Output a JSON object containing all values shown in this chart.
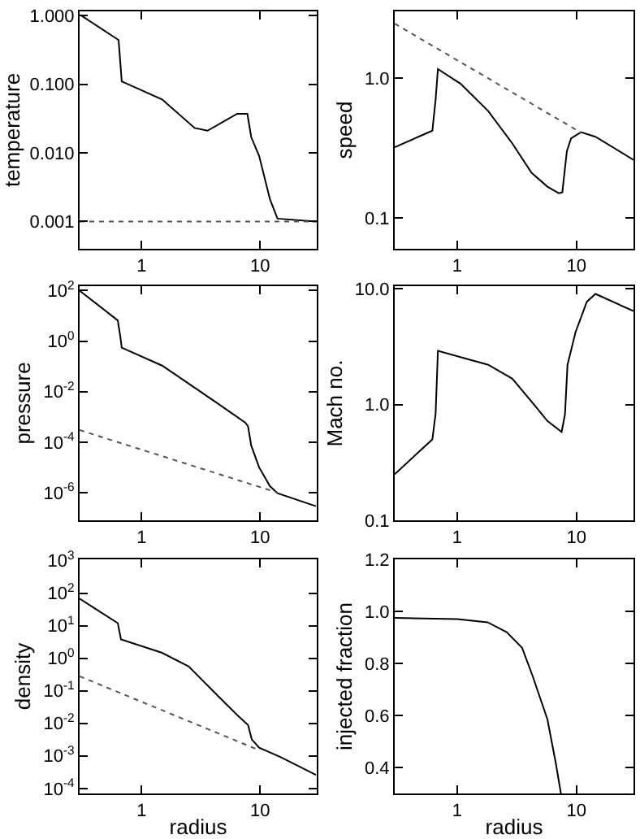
{
  "chart_data": [
    {
      "type": "line",
      "ylabel": "temperature",
      "log": "xy",
      "marker": "none",
      "xlim": [
        0.3,
        30
      ],
      "xticks": [
        1,
        10
      ],
      "ylim": [
        0.0004,
        1.15
      ],
      "yticks": [
        {
          "value": 0.001,
          "label": "0.001"
        },
        {
          "value": 0.01,
          "label": "0.010"
        },
        {
          "value": 0.1,
          "label": "0.100"
        },
        {
          "value": 1,
          "label": "1.000"
        }
      ],
      "series": [
        {
          "color": "#000000",
          "line_style": "solid",
          "x": [
            0.31,
            0.64,
            0.68,
            1.49,
            2.8,
            3.6,
            5,
            6.4,
            7.8,
            8.4,
            9.8,
            12.1,
            14,
            29.5
          ],
          "values": [
            1.0,
            0.44,
            0.11,
            0.06,
            0.023,
            0.021,
            0.029,
            0.037,
            0.037,
            0.017,
            0.009,
            0.0021,
            0.0011,
            0.001
          ]
        },
        {
          "color": "#555555",
          "line_style": "dotted",
          "x": [
            0.3,
            30
          ],
          "values": [
            0.001,
            0.001
          ]
        }
      ]
    },
    {
      "type": "line",
      "ylabel": "speed",
      "log": "xy",
      "marker": "none",
      "xlim": [
        0.3,
        30
      ],
      "xticks": [
        1,
        10
      ],
      "ylim": [
        0.06,
        3
      ],
      "yticks": [
        {
          "value": 0.1,
          "label": "0.1"
        },
        {
          "value": 1,
          "label": "1.0"
        }
      ],
      "series": [
        {
          "color": "#000000",
          "line_style": "solid",
          "x": [
            0.3,
            0.62,
            0.66,
            0.69,
            1.07,
            1.82,
            2.9,
            4.2,
            5.7,
            7.1,
            7.6,
            8.3,
            9.0,
            10.9,
            14.4,
            30
          ],
          "values": [
            0.32,
            0.42,
            0.7,
            1.16,
            0.91,
            0.58,
            0.34,
            0.21,
            0.167,
            0.15,
            0.152,
            0.3,
            0.37,
            0.41,
            0.38,
            0.26
          ]
        },
        {
          "color": "#555555",
          "line_style": "dotted",
          "x": [
            0.3,
            11
          ],
          "values": [
            2.45,
            0.405
          ]
        }
      ]
    },
    {
      "type": "line",
      "ylabel": "pressure",
      "log": "xy",
      "marker": "none",
      "xlim": [
        0.3,
        30
      ],
      "xticks": [
        1,
        10
      ],
      "ylim": [
        8e-08,
        150
      ],
      "yticks": [
        {
          "value": 1e-06,
          "label": "10$^{-6}$"
        },
        {
          "value": 0.0001,
          "label": "10$^{-4}$"
        },
        {
          "value": 0.01,
          "label": "10$^{-2}$"
        },
        {
          "value": 1,
          "label": "10$^{0}$"
        },
        {
          "value": 100,
          "label": "10$^{2}$"
        }
      ],
      "series": [
        {
          "color": "#000000",
          "line_style": "solid",
          "x": [
            0.3,
            0.63,
            0.66,
            0.68,
            1.49,
            4.2,
            7.5,
            7.9,
            8.4,
            9.8,
            12.1,
            14,
            29.5
          ],
          "values": [
            100,
            6.6,
            1.6,
            0.55,
            0.107,
            0.0039,
            0.00059,
            0.00042,
            7.4e-05,
            1e-05,
            1.8e-06,
            9.5e-07,
            2.9e-07
          ]
        },
        {
          "color": "#555555",
          "line_style": "dotted",
          "x": [
            0.3,
            14
          ],
          "values": [
            0.0003,
            1e-06
          ]
        }
      ]
    },
    {
      "type": "line",
      "ylabel": "Mach no.",
      "log": "xy",
      "marker": "none",
      "xlim": [
        0.3,
        30
      ],
      "xticks": [
        1,
        10
      ],
      "ylim": [
        0.1,
        10.5
      ],
      "yticks": [
        {
          "value": 0.1,
          "label": "0.1"
        },
        {
          "value": 1,
          "label": "1.0"
        },
        {
          "value": 10,
          "label": "10.0"
        }
      ],
      "series": [
        {
          "color": "#000000",
          "line_style": "solid",
          "x": [
            0.3,
            0.62,
            0.66,
            0.69,
            1.82,
            2.9,
            4.7,
            5.7,
            7.5,
            8.0,
            8.4,
            9.8,
            12.2,
            14.4,
            30
          ],
          "values": [
            0.25,
            0.5,
            0.83,
            2.9,
            2.2,
            1.67,
            0.92,
            0.72,
            0.58,
            0.82,
            2.2,
            4.2,
            7.7,
            9.0,
            6.4
          ]
        }
      ]
    },
    {
      "type": "line",
      "xlabel": "radius",
      "ylabel": "density",
      "log": "xy",
      "marker": "none",
      "xlim": [
        0.3,
        30
      ],
      "xticks": [
        1,
        10
      ],
      "ylim": [
        7e-05,
        1100
      ],
      "yticks": [
        {
          "value": 0.0001,
          "label": "10$^{-4}$"
        },
        {
          "value": 0.001,
          "label": "10$^{-3}$"
        },
        {
          "value": 0.01,
          "label": "10$^{-2}$"
        },
        {
          "value": 0.1,
          "label": "10$^{-1}$"
        },
        {
          "value": 1,
          "label": "10$^{0}$"
        },
        {
          "value": 10,
          "label": "10$^{1}$"
        },
        {
          "value": 100,
          "label": "10$^{2}$"
        },
        {
          "value": 1000,
          "label": "10$^{3}$"
        }
      ],
      "series": [
        {
          "color": "#000000",
          "line_style": "solid",
          "x": [
            0.3,
            0.63,
            0.67,
            1.49,
            2.5,
            4.2,
            6.4,
            7.9,
            8.5,
            9.8,
            14.8,
            29.5
          ],
          "values": [
            68,
            12,
            3.8,
            1.47,
            0.56,
            0.083,
            0.018,
            0.0089,
            0.0032,
            0.0018,
            0.00093,
            0.00026
          ]
        },
        {
          "color": "#555555",
          "line_style": "dotted",
          "x": [
            0.3,
            9.8
          ],
          "values": [
            0.28,
            0.0015
          ]
        }
      ]
    },
    {
      "type": "line",
      "xlabel": "radius",
      "ylabel": "injected fraction",
      "log": "x",
      "marker": "none",
      "xlim": [
        0.3,
        30
      ],
      "xticks": [
        1,
        10
      ],
      "ylim": [
        0.3,
        1.2
      ],
      "yticks": [
        {
          "value": 0.4,
          "label": "0.4"
        },
        {
          "value": 0.6,
          "label": "0.6"
        },
        {
          "value": 0.8,
          "label": "0.8"
        },
        {
          "value": 1.0,
          "label": "1.0"
        },
        {
          "value": 1.2,
          "label": "1.2"
        }
      ],
      "series": [
        {
          "color": "#000000",
          "line_style": "solid",
          "x": [
            0.3,
            1,
            1.8,
            2.6,
            3.5,
            4.3,
            5.7,
            6.7,
            7.4
          ],
          "values": [
            0.975,
            0.97,
            0.958,
            0.92,
            0.86,
            0.75,
            0.585,
            0.417,
            0.3
          ]
        }
      ]
    }
  ]
}
